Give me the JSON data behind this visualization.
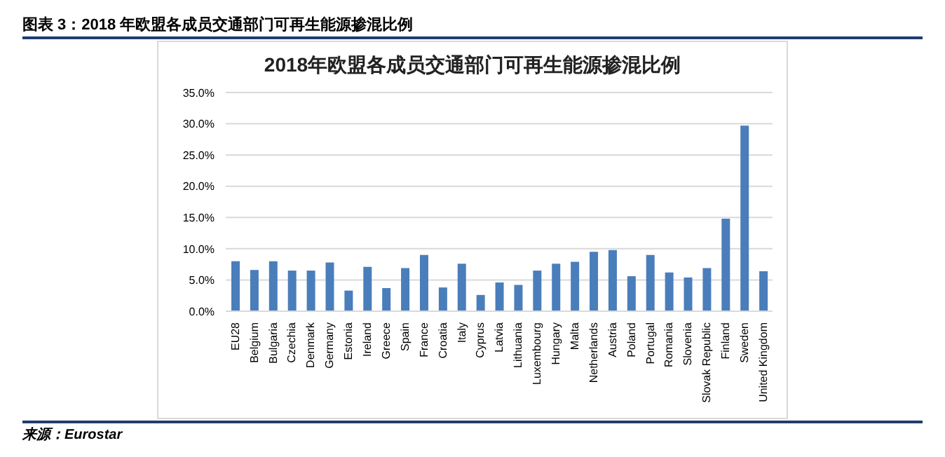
{
  "chart_data": {
    "type": "bar",
    "title": "图表 3：2018 年欧盟各成员交通部门可再生能源掺混比例",
    "subtitle": "2018年欧盟各成员交通部门可再生能源掺混比例",
    "categories": [
      "EU28",
      "Belgium",
      "Bulgaria",
      "Czechia",
      "Denmark",
      "Germany",
      "Estonia",
      "Ireland",
      "Greece",
      "Spain",
      "France",
      "Croatia",
      "Italy",
      "Cyprus",
      "Latvia",
      "Lithuania",
      "Luxembourg",
      "Hungary",
      "Malta",
      "Netherlands",
      "Austria",
      "Poland",
      "Portugal",
      "Romania",
      "Slovenia",
      "Slovak Republic",
      "Finland",
      "Sweden",
      "United Kingdom"
    ],
    "values": [
      8.0,
      6.6,
      8.0,
      6.5,
      6.5,
      7.8,
      3.3,
      7.1,
      3.7,
      6.9,
      9.0,
      3.8,
      7.6,
      2.6,
      4.6,
      4.2,
      6.5,
      7.6,
      7.9,
      9.5,
      9.8,
      5.6,
      9.0,
      6.2,
      5.4,
      6.9,
      14.8,
      29.7,
      6.4
    ],
    "color": "#4a7ebb",
    "ylim": [
      0,
      35
    ],
    "yticks": [
      {
        "value": 0,
        "label": "0.0%"
      },
      {
        "value": 5,
        "label": "5.0%"
      },
      {
        "value": 10,
        "label": "10.0%"
      },
      {
        "value": 15,
        "label": "15.0%"
      },
      {
        "value": 20,
        "label": "20.0%"
      },
      {
        "value": 25,
        "label": "25.0%"
      },
      {
        "value": 30,
        "label": "30.0%"
      },
      {
        "value": 35,
        "label": "35.0%"
      }
    ],
    "grid": "y",
    "annotations": [
      "来源：Eurostar"
    ]
  }
}
